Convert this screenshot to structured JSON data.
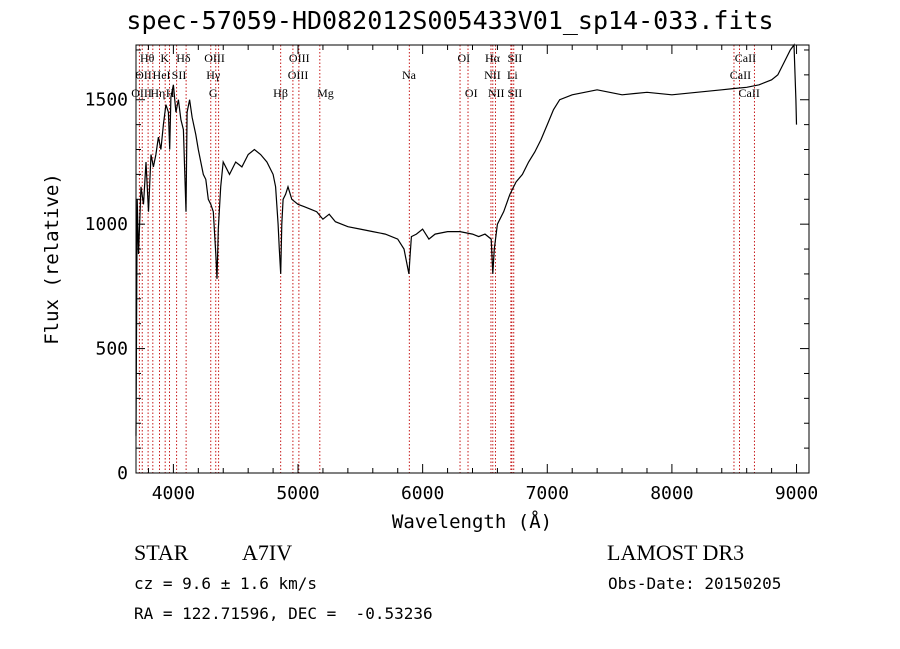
{
  "chart_data": {
    "type": "line",
    "title": "spec-57059-HD082012S005433V01_sp14-033.fits",
    "xlabel": "Wavelength (Å)",
    "ylabel": "Flux (relative)",
    "xlim": [
      3700,
      9100
    ],
    "ylim": [
      0,
      1720
    ],
    "xticks": [
      4000,
      5000,
      6000,
      7000,
      8000,
      9000
    ],
    "yticks": [
      0,
      500,
      1000,
      1500
    ],
    "grid": false,
    "series": [
      {
        "x": [
          3700,
          3710,
          3720,
          3740,
          3760,
          3780,
          3800,
          3820,
          3840,
          3860,
          3880,
          3900,
          3920,
          3940,
          3960,
          3970,
          3980,
          4000,
          4020,
          4040,
          4060,
          4080,
          4101,
          4110,
          4130,
          4150,
          4180,
          4200,
          4220,
          4240,
          4260,
          4280,
          4300,
          4320,
          4340,
          4350,
          4360,
          4380,
          4400,
          4450,
          4500,
          4550,
          4600,
          4650,
          4700,
          4750,
          4800,
          4820,
          4840,
          4850,
          4861,
          4870,
          4880,
          4900,
          4920,
          4950,
          5000,
          5050,
          5100,
          5150,
          5200,
          5250,
          5300,
          5400,
          5500,
          5600,
          5700,
          5800,
          5850,
          5890,
          5900,
          5910,
          5950,
          6000,
          6050,
          6100,
          6200,
          6300,
          6400,
          6450,
          6500,
          6550,
          6563,
          6575,
          6600,
          6650,
          6700,
          6750,
          6800,
          6850,
          6900,
          6950,
          7000,
          7050,
          7100,
          7200,
          7300,
          7400,
          7500,
          7600,
          7800,
          8000,
          8200,
          8400,
          8500,
          8600,
          8700,
          8800,
          8850,
          8900,
          8950,
          8980,
          8995,
          9000
        ],
        "y": [
          150,
          1100,
          880,
          1150,
          1080,
          1250,
          1050,
          1280,
          1230,
          1280,
          1350,
          1300,
          1400,
          1480,
          1450,
          1300,
          1510,
          1560,
          1450,
          1500,
          1420,
          1380,
          1050,
          1450,
          1500,
          1430,
          1360,
          1300,
          1250,
          1200,
          1180,
          1100,
          1080,
          1050,
          880,
          780,
          980,
          1150,
          1250,
          1200,
          1250,
          1230,
          1280,
          1300,
          1280,
          1250,
          1200,
          1150,
          1000,
          900,
          800,
          1000,
          1100,
          1120,
          1150,
          1100,
          1080,
          1070,
          1060,
          1050,
          1020,
          1040,
          1010,
          990,
          980,
          970,
          960,
          940,
          900,
          800,
          880,
          950,
          960,
          980,
          940,
          960,
          970,
          970,
          960,
          950,
          960,
          940,
          800,
          900,
          1000,
          1050,
          1120,
          1170,
          1200,
          1250,
          1290,
          1340,
          1400,
          1460,
          1500,
          1520,
          1530,
          1540,
          1530,
          1520,
          1530,
          1520,
          1530,
          1540,
          1545,
          1550,
          1560,
          1580,
          1600,
          1650,
          1700,
          1720,
          1500,
          1400
        ]
      }
    ],
    "lines": [
      {
        "x": 3727,
        "labels": [
          "OII"
        ]
      },
      {
        "x": 3750,
        "labels": [
          "OIII"
        ]
      },
      {
        "x": 3797,
        "labels": [
          "Hθ",
          "Hη"
        ]
      },
      {
        "x": 3835,
        "labels": [
          "Hη"
        ]
      },
      {
        "x": 3889,
        "labels": [
          "HeI"
        ]
      },
      {
        "x": 3934,
        "labels": [
          "K"
        ]
      },
      {
        "x": 3969,
        "labels": [
          "H"
        ]
      },
      {
        "x": 4026,
        "labels": [
          "SII"
        ]
      },
      {
        "x": 4102,
        "labels": [
          "Hδ"
        ]
      },
      {
        "x": 4300,
        "labels": [
          "G"
        ]
      },
      {
        "x": 4340,
        "labels": [
          "Hγ"
        ]
      },
      {
        "x": 4363,
        "labels": [
          "OIII"
        ]
      },
      {
        "x": 4861,
        "labels": [
          "Hβ"
        ]
      },
      {
        "x": 4959,
        "labels": [
          "OIII"
        ]
      },
      {
        "x": 5007,
        "labels": [
          "OIII"
        ]
      },
      {
        "x": 5175,
        "labels": [
          "Mg"
        ]
      },
      {
        "x": 5893,
        "labels": [
          "Na"
        ]
      },
      {
        "x": 6300,
        "labels": [
          "OI"
        ]
      },
      {
        "x": 6364,
        "labels": [
          "OI"
        ]
      },
      {
        "x": 6548,
        "labels": [
          "NII"
        ]
      },
      {
        "x": 6563,
        "labels": [
          "Hα"
        ]
      },
      {
        "x": 6584,
        "labels": [
          "NII"
        ]
      },
      {
        "x": 6708,
        "labels": [
          "Li"
        ]
      },
      {
        "x": 6716,
        "labels": [
          "SII"
        ]
      },
      {
        "x": 6731,
        "labels": [
          "SII"
        ]
      },
      {
        "x": 8498,
        "labels": [
          "CaII"
        ]
      },
      {
        "x": 8542,
        "labels": [
          "CaII"
        ]
      },
      {
        "x": 8662,
        "labels": [
          "CaII"
        ]
      }
    ],
    "line_label_rows": [
      [
        "Hθ",
        "K",
        "Hδ",
        "OIII",
        "OIII",
        "OI",
        "Hα",
        "SII",
        "CaII"
      ],
      [
        "OII",
        "HeI",
        "SII",
        "Hγ",
        "OIII",
        "Na",
        "NII",
        "Li",
        "CaII"
      ],
      [
        "OIII",
        "Hη",
        "H",
        "G",
        "Hβ",
        "Mg",
        "OI",
        "NII",
        "SII",
        "CaII"
      ]
    ]
  },
  "info": {
    "object_type": "STAR",
    "spectral_class": "A7IV",
    "survey": "LAMOST DR3",
    "cz": "cz = 9.6 ± 1.6 km/s",
    "obs_date": "Obs-Date: 20150205",
    "coords": "RA = 122.71596, DEC =  -0.53236"
  }
}
